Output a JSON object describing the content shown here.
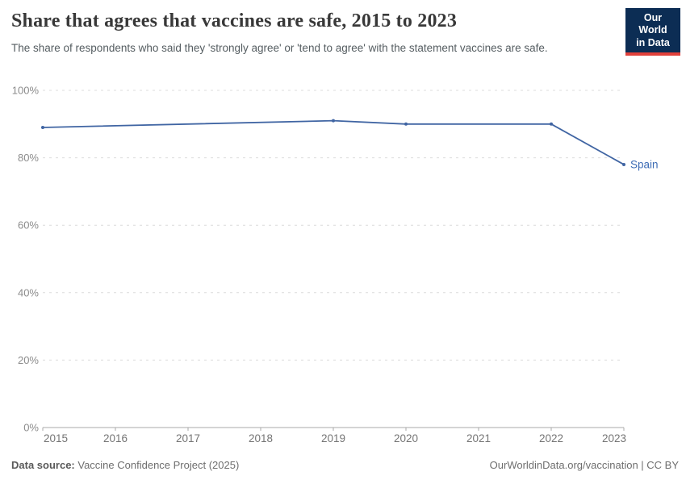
{
  "header": {
    "title": "Share that agrees that vaccines are safe, 2015 to 2023",
    "subtitle": "The share of respondents who said they 'strongly agree' or 'tend to agree' with the statement vaccines are safe.",
    "logo": {
      "line1": "Our World",
      "line2": "in Data",
      "bg_color": "#0c2d54",
      "stripe_color": "#e0403a"
    }
  },
  "chart_data": {
    "type": "line",
    "title": "Share that agrees that vaccines are safe, 2015 to 2023",
    "x": [
      2015,
      2019,
      2020,
      2022,
      2023
    ],
    "series": [
      {
        "name": "Spain",
        "color": "#4065a3",
        "label_color": "#3d6cb5",
        "values": [
          89,
          91,
          90,
          90,
          78
        ]
      }
    ],
    "xlim": [
      2015,
      2023
    ],
    "ylim": [
      0,
      100
    ],
    "x_ticks": [
      2015,
      2016,
      2017,
      2018,
      2019,
      2020,
      2021,
      2022,
      2023
    ],
    "y_ticks": [
      0,
      20,
      40,
      60,
      80,
      100
    ],
    "y_tick_suffix": "%",
    "xlabel": "",
    "ylabel": "",
    "grid": "dashed-horizontal",
    "legend_position": "end-of-line",
    "colors": {
      "grid": "#dcdcdc",
      "axis": "#a8a8a8",
      "y_label": "#8c8c8c",
      "x_label": "#757575"
    }
  },
  "footer": {
    "source_label": "Data source:",
    "source_text": " Vaccine Confidence Project (2025)",
    "attribution": "OurWorldinData.org/vaccination | CC BY"
  }
}
